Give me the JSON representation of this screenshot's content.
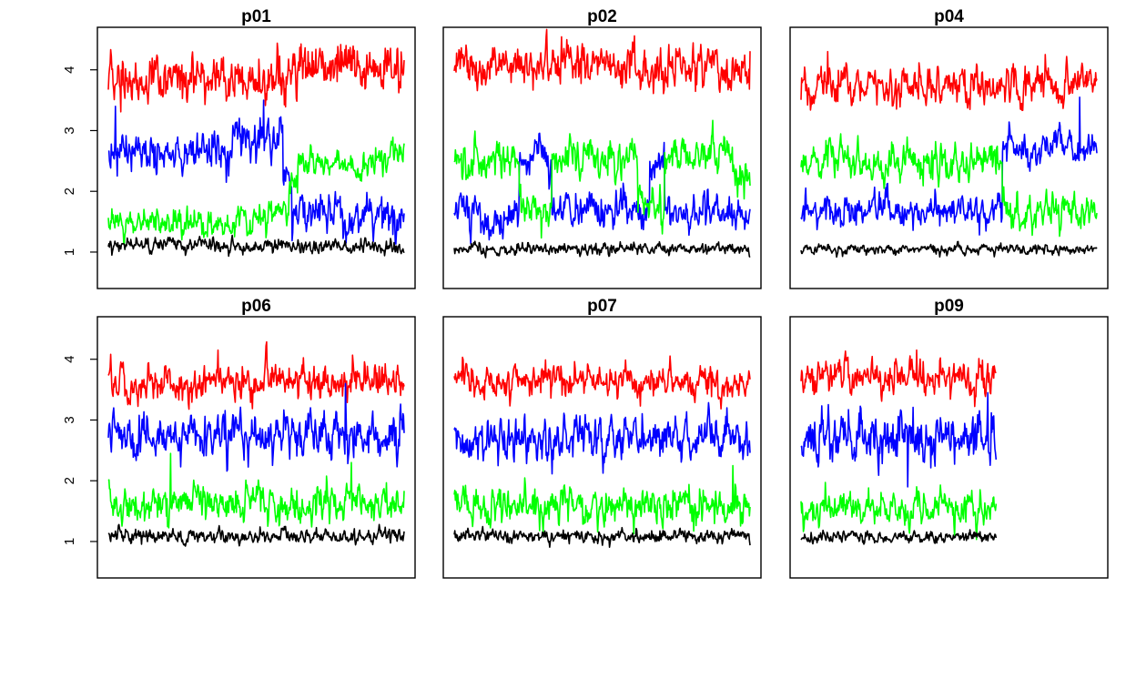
{
  "chart_data": {
    "type": "line",
    "ylim": [
      0.4,
      4.7
    ],
    "yticks": [
      "1",
      "2",
      "3",
      "4"
    ],
    "grid": false,
    "series_colors": [
      "#ff0000",
      "#0000ff",
      "#00ff00",
      "#000000"
    ],
    "panels": [
      {
        "title": "p01",
        "show_yaxis": true,
        "n": 500,
        "series": [
          {
            "color": "#ff0000",
            "noise": 0.17,
            "segments": [
              [
                0,
                300,
                3.82
              ],
              [
                300,
                500,
                4.06
              ]
            ]
          },
          {
            "color": "#0000ff",
            "noise": 0.14,
            "segments": [
              [
                0,
                210,
                2.62
              ],
              [
                210,
                295,
                2.85
              ],
              [
                295,
                310,
                2.3
              ],
              [
                310,
                500,
                1.6
              ]
            ],
            "spikes": [
              [
                12,
                3.4
              ],
              [
                262,
                3.5
              ]
            ]
          },
          {
            "color": "#00ff00",
            "noise": 0.1,
            "segments": [
              [
                0,
                270,
                1.5
              ],
              [
                270,
                305,
                1.65
              ],
              [
                305,
                320,
                2.1
              ],
              [
                320,
                460,
                2.45
              ],
              [
                460,
                500,
                2.65
              ]
            ]
          },
          {
            "color": "#000000",
            "noise": 0.05,
            "segments": [
              [
                0,
                500,
                1.1
              ]
            ]
          }
        ]
      },
      {
        "title": "p02",
        "show_yaxis": false,
        "n": 500,
        "series": [
          {
            "color": "#ff0000",
            "noise": 0.15,
            "segments": [
              [
                0,
                500,
                4.05
              ]
            ],
            "spikes": [
              [
                155,
                4.55
              ]
            ]
          },
          {
            "color": "#0000ff",
            "noise": 0.13,
            "segments": [
              [
                0,
                110,
                1.65
              ],
              [
                110,
                165,
                2.5
              ],
              [
                165,
                330,
                1.68
              ],
              [
                330,
                355,
                2.4
              ],
              [
                355,
                500,
                1.65
              ]
            ]
          },
          {
            "color": "#00ff00",
            "noise": 0.14,
            "segments": [
              [
                0,
                110,
                2.5
              ],
              [
                110,
                165,
                1.7
              ],
              [
                165,
                310,
                2.55
              ],
              [
                310,
                355,
                1.7
              ],
              [
                355,
                470,
                2.6
              ],
              [
                470,
                500,
                2.2
              ]
            ]
          },
          {
            "color": "#000000",
            "noise": 0.04,
            "segments": [
              [
                0,
                500,
                1.05
              ]
            ]
          }
        ]
      },
      {
        "title": "p04",
        "show_yaxis": false,
        "n": 500,
        "series": [
          {
            "color": "#ff0000",
            "noise": 0.14,
            "segments": [
              [
                0,
                500,
                3.75
              ]
            ],
            "spikes": [
              [
                45,
                4.3
              ]
            ]
          },
          {
            "color": "#0000ff",
            "noise": 0.11,
            "segments": [
              [
                0,
                340,
                1.68
              ],
              [
                340,
                500,
                2.7
              ]
            ],
            "spikes": [
              [
                470,
                3.55
              ]
            ]
          },
          {
            "color": "#00ff00",
            "noise": 0.13,
            "segments": [
              [
                0,
                340,
                2.5
              ],
              [
                340,
                500,
                1.65
              ]
            ]
          },
          {
            "color": "#000000",
            "noise": 0.035,
            "segments": [
              [
                0,
                500,
                1.05
              ]
            ]
          }
        ]
      },
      {
        "title": "p06",
        "show_yaxis": true,
        "n": 500,
        "series": [
          {
            "color": "#ff0000",
            "noise": 0.13,
            "segments": [
              [
                0,
                500,
                3.62
              ]
            ],
            "spikes": [
              [
                185,
                4.15
              ]
            ]
          },
          {
            "color": "#0000ff",
            "noise": 0.16,
            "segments": [
              [
                0,
                500,
                2.75
              ]
            ],
            "spikes": [
              [
                400,
                3.6
              ]
            ]
          },
          {
            "color": "#00ff00",
            "noise": 0.13,
            "segments": [
              [
                0,
                500,
                1.62
              ]
            ],
            "spikes": [
              [
                105,
                2.45
              ],
              [
                410,
                2.3
              ]
            ]
          },
          {
            "color": "#000000",
            "noise": 0.05,
            "segments": [
              [
                0,
                500,
                1.08
              ]
            ]
          }
        ]
      },
      {
        "title": "p07",
        "show_yaxis": false,
        "n": 500,
        "series": [
          {
            "color": "#ff0000",
            "noise": 0.11,
            "segments": [
              [
                0,
                500,
                3.63
              ]
            ]
          },
          {
            "color": "#0000ff",
            "noise": 0.14,
            "segments": [
              [
                0,
                500,
                2.68
              ]
            ],
            "spikes": [
              [
                460,
                3.2
              ]
            ]
          },
          {
            "color": "#00ff00",
            "noise": 0.13,
            "segments": [
              [
                0,
                500,
                1.58
              ]
            ],
            "spikes": [
              [
                470,
                2.25
              ]
            ]
          },
          {
            "color": "#000000",
            "noise": 0.045,
            "segments": [
              [
                0,
                500,
                1.08
              ]
            ]
          }
        ]
      },
      {
        "title": "p09",
        "show_yaxis": false,
        "n": 330,
        "series": [
          {
            "color": "#ff0000",
            "noise": 0.13,
            "segments": [
              [
                0,
                330,
                3.68
              ]
            ],
            "spikes": [
              [
                195,
                4.15
              ]
            ]
          },
          {
            "color": "#0000ff",
            "noise": 0.18,
            "segments": [
              [
                0,
                330,
                2.7
              ]
            ],
            "spikes": [
              [
                180,
                1.9
              ],
              [
                315,
                3.45
              ]
            ]
          },
          {
            "color": "#00ff00",
            "noise": 0.12,
            "segments": [
              [
                0,
                330,
                1.55
              ]
            ]
          },
          {
            "color": "#000000",
            "noise": 0.04,
            "segments": [
              [
                0,
                330,
                1.08
              ]
            ]
          }
        ]
      }
    ]
  }
}
